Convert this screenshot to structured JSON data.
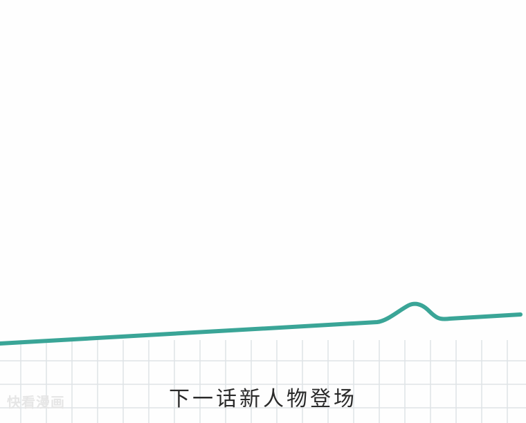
{
  "caption": "下一话新人物登场",
  "watermark": "快看漫画",
  "colors": {
    "line": "#3aa597",
    "grid": "#dfe3e6",
    "background": "#fefefe"
  }
}
